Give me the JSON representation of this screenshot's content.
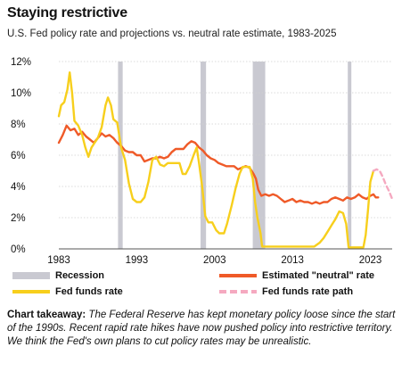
{
  "title": "Staying restrictive",
  "subtitle": "U.S. Fed policy rate and projections vs. neutral rate estimate, 1983-2025",
  "takeaway": {
    "label": "Chart takeaway:",
    "text": "The Federal Reserve has kept monetary policy loose since the start of the 1990s. Recent rapid rate hikes have now pushed policy into restrictive territory. We think the Fed's own plans to cut policy rates may be unrealistic."
  },
  "legend": {
    "recession": "Recession",
    "neutral": "Estimated \"neutral\" rate",
    "funds": "Fed funds rate",
    "path": "Fed funds rate path"
  },
  "colors": {
    "recession": "#c9c9d1",
    "neutral": "#ef5a28",
    "funds": "#f7cf1c",
    "path": "#f5a9c0",
    "grid": "#cfcfcf"
  },
  "chart_data": {
    "type": "line",
    "x_ticks": [
      1983,
      1993,
      2003,
      2013,
      2023
    ],
    "y_ticks": [
      0,
      2,
      4,
      6,
      8,
      10,
      12
    ],
    "y_tick_labels": [
      "0%",
      "2%",
      "4%",
      "6%",
      "8%",
      "10%",
      "12%"
    ],
    "xlim": [
      1983,
      2025.8
    ],
    "ylim": [
      0,
      12
    ],
    "recessions": [
      [
        1990.6,
        1991.2
      ],
      [
        2001.2,
        2001.9
      ],
      [
        2007.9,
        2009.5
      ],
      [
        2020.1,
        2020.4
      ]
    ],
    "series": [
      {
        "name": "Estimated \"neutral\" rate",
        "key": "neutral",
        "points": [
          [
            1983,
            6.8
          ],
          [
            1983.5,
            7.3
          ],
          [
            1984,
            7.9
          ],
          [
            1984.5,
            7.6
          ],
          [
            1985,
            7.7
          ],
          [
            1985.5,
            7.3
          ],
          [
            1986,
            7.5
          ],
          [
            1986.5,
            7.2
          ],
          [
            1987,
            7.0
          ],
          [
            1987.5,
            6.8
          ],
          [
            1988,
            7.1
          ],
          [
            1988.5,
            7.4
          ],
          [
            1989,
            7.2
          ],
          [
            1989.5,
            7.3
          ],
          [
            1990,
            7.1
          ],
          [
            1990.5,
            6.8
          ],
          [
            1991,
            6.6
          ],
          [
            1991.5,
            6.3
          ],
          [
            1992,
            6.2
          ],
          [
            1992.5,
            6.2
          ],
          [
            1993,
            6.0
          ],
          [
            1993.5,
            6.0
          ],
          [
            1994,
            5.6
          ],
          [
            1994.5,
            5.7
          ],
          [
            1995,
            5.8
          ],
          [
            1995.5,
            5.8
          ],
          [
            1996,
            5.9
          ],
          [
            1996.5,
            5.8
          ],
          [
            1997,
            5.9
          ],
          [
            1997.5,
            6.2
          ],
          [
            1998,
            6.4
          ],
          [
            1998.5,
            6.4
          ],
          [
            1999,
            6.4
          ],
          [
            1999.5,
            6.7
          ],
          [
            2000,
            6.9
          ],
          [
            2000.5,
            6.8
          ],
          [
            2001,
            6.5
          ],
          [
            2001.5,
            6.3
          ],
          [
            2002,
            6.0
          ],
          [
            2002.5,
            5.8
          ],
          [
            2003,
            5.7
          ],
          [
            2003.5,
            5.5
          ],
          [
            2004,
            5.4
          ],
          [
            2004.5,
            5.3
          ],
          [
            2005,
            5.3
          ],
          [
            2005.5,
            5.3
          ],
          [
            2006,
            5.1
          ],
          [
            2006.5,
            5.2
          ],
          [
            2007,
            5.3
          ],
          [
            2007.5,
            5.2
          ],
          [
            2008,
            4.8
          ],
          [
            2008.3,
            4.5
          ],
          [
            2008.6,
            3.8
          ],
          [
            2009,
            3.4
          ],
          [
            2009.5,
            3.5
          ],
          [
            2010,
            3.4
          ],
          [
            2010.5,
            3.5
          ],
          [
            2011,
            3.4
          ],
          [
            2011.5,
            3.2
          ],
          [
            2012,
            3.0
          ],
          [
            2012.5,
            3.1
          ],
          [
            2013,
            3.2
          ],
          [
            2013.5,
            3.0
          ],
          [
            2014,
            3.1
          ],
          [
            2014.5,
            3.0
          ],
          [
            2015,
            3.0
          ],
          [
            2015.5,
            2.9
          ],
          [
            2016,
            3.0
          ],
          [
            2016.5,
            2.9
          ],
          [
            2017,
            3.0
          ],
          [
            2017.5,
            3.0
          ],
          [
            2018,
            3.2
          ],
          [
            2018.5,
            3.3
          ],
          [
            2019,
            3.2
          ],
          [
            2019.5,
            3.1
          ],
          [
            2020,
            3.3
          ],
          [
            2020.5,
            3.2
          ],
          [
            2021,
            3.3
          ],
          [
            2021.5,
            3.5
          ],
          [
            2022,
            3.3
          ],
          [
            2022.5,
            3.2
          ],
          [
            2023,
            3.4
          ],
          [
            2023.4,
            3.5
          ],
          [
            2023.7,
            3.3
          ],
          [
            2024,
            3.3
          ]
        ]
      },
      {
        "name": "Fed funds rate",
        "key": "funds",
        "points": [
          [
            1983,
            8.5
          ],
          [
            1983.3,
            9.2
          ],
          [
            1983.7,
            9.4
          ],
          [
            1984.1,
            10.2
          ],
          [
            1984.4,
            11.3
          ],
          [
            1984.7,
            10.0
          ],
          [
            1985,
            8.2
          ],
          [
            1985.5,
            7.9
          ],
          [
            1986,
            7.3
          ],
          [
            1986.4,
            6.5
          ],
          [
            1986.8,
            5.9
          ],
          [
            1987.2,
            6.5
          ],
          [
            1987.6,
            6.8
          ],
          [
            1988,
            7.1
          ],
          [
            1988.5,
            7.8
          ],
          [
            1989,
            9.2
          ],
          [
            1989.3,
            9.7
          ],
          [
            1989.7,
            9.2
          ],
          [
            1990,
            8.3
          ],
          [
            1990.5,
            8.1
          ],
          [
            1991,
            6.5
          ],
          [
            1991.5,
            5.7
          ],
          [
            1992,
            4.2
          ],
          [
            1992.5,
            3.2
          ],
          [
            1993,
            3.0
          ],
          [
            1993.5,
            3.0
          ],
          [
            1994,
            3.3
          ],
          [
            1994.5,
            4.3
          ],
          [
            1995,
            5.7
          ],
          [
            1995.5,
            5.9
          ],
          [
            1996,
            5.4
          ],
          [
            1996.5,
            5.3
          ],
          [
            1997,
            5.5
          ],
          [
            1997.5,
            5.5
          ],
          [
            1998,
            5.5
          ],
          [
            1998.5,
            5.5
          ],
          [
            1998.9,
            4.8
          ],
          [
            1999.3,
            4.8
          ],
          [
            1999.8,
            5.3
          ],
          [
            2000.3,
            6.0
          ],
          [
            2000.7,
            6.5
          ],
          [
            2001,
            5.5
          ],
          [
            2001.4,
            4.0
          ],
          [
            2001.8,
            2.1
          ],
          [
            2002.2,
            1.7
          ],
          [
            2002.7,
            1.7
          ],
          [
            2003.2,
            1.2
          ],
          [
            2003.6,
            1.0
          ],
          [
            2004.2,
            1.0
          ],
          [
            2004.6,
            1.6
          ],
          [
            2005.2,
            2.8
          ],
          [
            2005.7,
            3.9
          ],
          [
            2006.2,
            4.8
          ],
          [
            2006.6,
            5.25
          ],
          [
            2007.5,
            5.25
          ],
          [
            2007.9,
            4.5
          ],
          [
            2008.2,
            3.0
          ],
          [
            2008.5,
            2.0
          ],
          [
            2008.9,
            1.0
          ],
          [
            2009.1,
            0.15
          ],
          [
            2015.8,
            0.15
          ],
          [
            2016.5,
            0.4
          ],
          [
            2017,
            0.7
          ],
          [
            2017.5,
            1.1
          ],
          [
            2018,
            1.5
          ],
          [
            2018.5,
            1.9
          ],
          [
            2019,
            2.4
          ],
          [
            2019.5,
            2.3
          ],
          [
            2019.9,
            1.6
          ],
          [
            2020.2,
            0.1
          ],
          [
            2022.1,
            0.1
          ],
          [
            2022.4,
            0.9
          ],
          [
            2022.7,
            2.5
          ],
          [
            2023,
            4.3
          ],
          [
            2023.4,
            5.0
          ]
        ]
      },
      {
        "name": "Fed funds rate path",
        "key": "path",
        "points": [
          [
            2023.4,
            5.0
          ],
          [
            2023.8,
            5.1
          ],
          [
            2024.2,
            5.0
          ],
          [
            2024.6,
            4.6
          ],
          [
            2025,
            4.1
          ],
          [
            2025.4,
            3.7
          ],
          [
            2025.8,
            3.2
          ]
        ]
      }
    ]
  }
}
